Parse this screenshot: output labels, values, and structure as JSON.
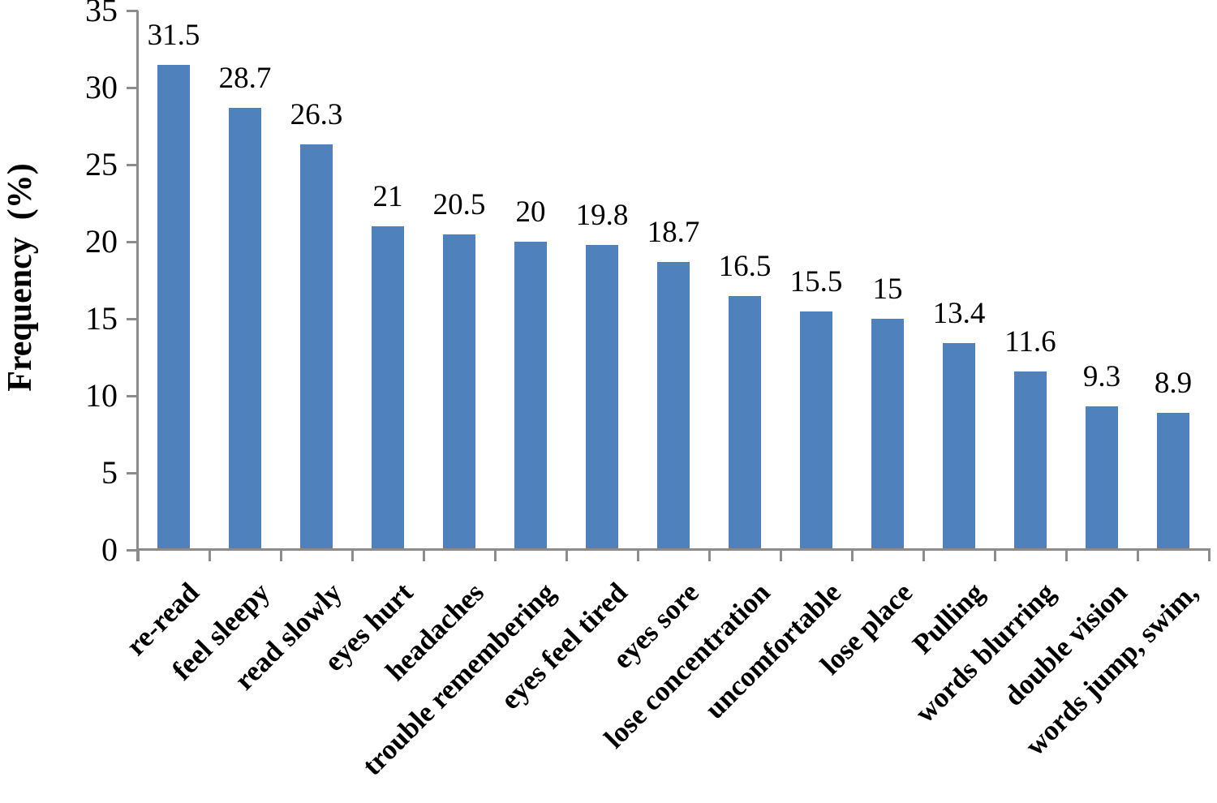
{
  "chart_data": {
    "type": "bar",
    "title": "",
    "xlabel": "",
    "ylabel": "Frequency  (%)",
    "categories": [
      "re-read",
      "feel sleepy",
      "read slowly",
      "eyes hurt",
      "headaches",
      "trouble remembering",
      "eyes feel tired",
      "eyes sore",
      "lose concentration",
      "uncomfortable",
      "lose place",
      "Pulling",
      "words blurring",
      "double vision",
      "words jump, swim,"
    ],
    "values": [
      31.5,
      28.7,
      26.3,
      21,
      20.5,
      20,
      19.8,
      18.7,
      16.5,
      15.5,
      15,
      13.4,
      11.6,
      9.3,
      8.9
    ],
    "value_labels": [
      "31.5",
      "28.7",
      "26.3",
      "21",
      "20.5",
      "20",
      "19.8",
      "18.7",
      "16.5",
      "15.5",
      "15",
      "13.4",
      "11.6",
      "9.3",
      "8.9"
    ],
    "ylim": [
      0,
      35
    ],
    "yticks": [
      0,
      5,
      10,
      15,
      20,
      25,
      30,
      35
    ],
    "grid": false,
    "legend": null,
    "bar_color": "#4F81BD",
    "axis_color": "#8C8C8C",
    "text_color": "#000000"
  }
}
